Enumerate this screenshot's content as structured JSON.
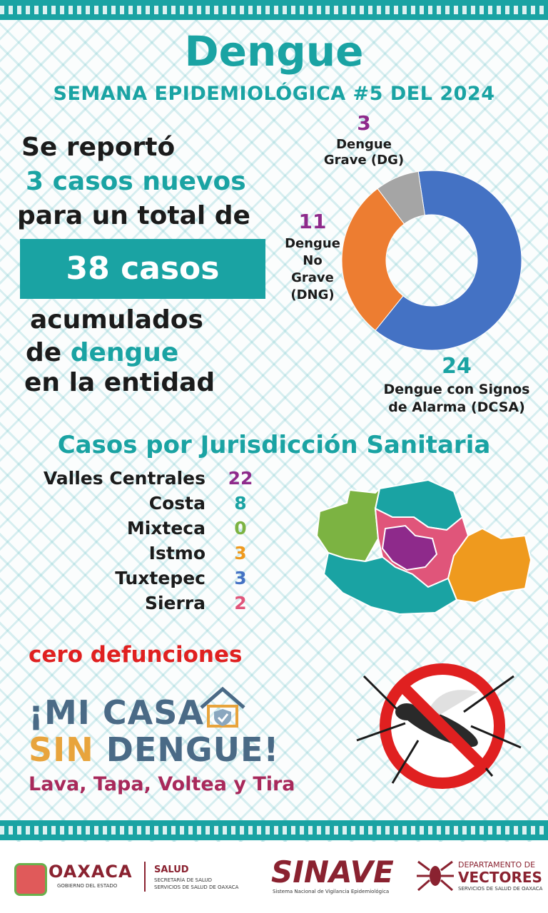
{
  "header": {
    "title": "Dengue",
    "subtitle": "SEMANA EPIDEMIOLÓGICA #5 DEL 2024"
  },
  "summary": {
    "line1": "Se reportó",
    "line2": "3 casos nuevos",
    "line3": "para un total de",
    "box": "38 casos",
    "line4": "acumulados",
    "line5_a": "de ",
    "line5_b": "dengue",
    "line6": "en la entidad"
  },
  "chart_data": {
    "type": "pie",
    "categories": [
      "Dengue con Signos de Alarma (DCSA)",
      "Dengue No Grave (DNG)",
      "Dengue Grave (DG)"
    ],
    "values": [
      24,
      11,
      3
    ],
    "colors": [
      "#4472c4",
      "#ed7d31",
      "#a5a5a5"
    ]
  },
  "pie_labels": {
    "dg_num": "3",
    "dg_l1": "Dengue",
    "dg_l2": "Grave (DG)",
    "dng_num": "11",
    "dng_l1": "Dengue",
    "dng_l2": "No",
    "dng_l3": "Grave",
    "dng_l4": "(DNG)",
    "dcsa_num": "24",
    "dcsa_l1": "Dengue con Signos",
    "dcsa_l2": "de Alarma (DCSA)"
  },
  "jurisdictions": {
    "heading": "Casos por Jurisdicción Sanitaria",
    "items": [
      {
        "name": "Valles Centrales",
        "value": "22",
        "color": "#8e2a8b"
      },
      {
        "name": "Costa",
        "value": "8",
        "color": "#1aa3a3"
      },
      {
        "name": "Mixteca",
        "value": "0",
        "color": "#7cb342"
      },
      {
        "name": "Istmo",
        "value": "3",
        "color": "#ef9a1e"
      },
      {
        "name": "Tuxtepec",
        "value": "3",
        "color": "#4472c4"
      },
      {
        "name": "Sierra",
        "value": "2",
        "color": "#e0557a"
      }
    ]
  },
  "deaths": {
    "text": "cero defunciones",
    "color": "#e02020"
  },
  "campaign": {
    "line1": "¡MI CASA",
    "line2_a": "SIN ",
    "line2_b": "DENGUE!",
    "slogan": "Lava, Tapa, Voltea y Tira"
  },
  "footer": {
    "oaxaca": "OAXACA",
    "oaxaca_sub": "GOBIERNO DEL ESTADO",
    "salud": "SALUD",
    "salud_sub1": "SECRETARÍA DE SALUD",
    "salud_sub2": "SERVICIOS DE SALUD DE OAXACA",
    "sinave": "SINAVE",
    "sinave_sub": "Sistema Nacional de Vigilancia Epidemiológica",
    "dep1": "DEPARTAMENTO DE",
    "dep2": "VECTORES",
    "dep3": "SERVICIOS DE SALUD DE OAXACA"
  }
}
